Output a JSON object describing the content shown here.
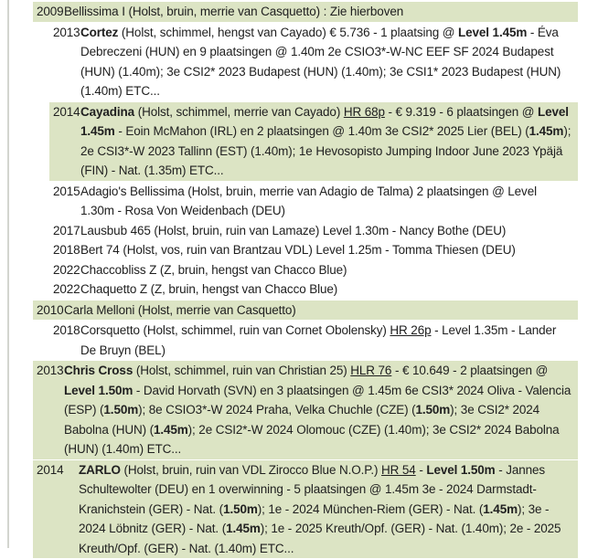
{
  "page": {
    "background_color": "#ffffff",
    "row_highlight_color": "#dce4c4",
    "left_border_color": "#d3d5cf",
    "text_color": "#202020"
  },
  "rows": [
    {
      "year": "2009",
      "level": 1,
      "green": true,
      "wide": false,
      "segments": [
        {
          "t": "Bellissima I (Holst, bruin, merrie van Casquetto) : Zie hierboven"
        }
      ]
    },
    {
      "year": "2013",
      "level": 2,
      "green": false,
      "wide": false,
      "segments": [
        {
          "t": "Cortez",
          "b": true
        },
        {
          "t": " (Holst, schimmel, hengst van Cayado) € 5.736 - 1 plaatsing @ "
        },
        {
          "t": "Level 1.45m",
          "b": true
        },
        {
          "t": " - Éva Debreczeni (HUN) en 9 plaatsingen @ 1.40m 2e CSIO3*-W-NC EEF SF 2024 Budapest (HUN) (1.40m); 3e CSI2* 2023 Budapest (HUN) (1.40m); 3e CSI1* 2023 Budapest (HUN) (1.40m) ETC..."
        }
      ]
    },
    {
      "year": "2014",
      "level": 2,
      "green": true,
      "wide": false,
      "segments": [
        {
          "t": "Cayadina",
          "b": true
        },
        {
          "t": " (Holst, schimmel, merrie van Cayado) "
        },
        {
          "t": "HR 68p",
          "u": true
        },
        {
          "t": " - € 9.319 - 6 plaatsingen @ "
        },
        {
          "t": "Level 1.45m",
          "b": true
        },
        {
          "t": " - Eoin McMahon (IRL) en 2 plaatsingen @ 1.40m 3e CSI2* 2025 Lier (BEL) ("
        },
        {
          "t": "1.45m",
          "b": true
        },
        {
          "t": "); 2e CSI3*-W 2023 Tallinn (EST) (1.40m); 1e Hevosopisto Jumping Indoor June 2023 Ypäjä (FIN) - Nat. (1.35m) ETC..."
        }
      ]
    },
    {
      "year": "2015",
      "level": 2,
      "green": false,
      "wide": false,
      "segments": [
        {
          "t": "Adagio's Bellissima (Holst, bruin, merrie van Adagio de Talma) 2 plaatsingen @ Level 1.30m - Rosa Von Weidenbach (DEU)"
        }
      ]
    },
    {
      "year": "2017",
      "level": 2,
      "green": false,
      "wide": false,
      "segments": [
        {
          "t": "Lausbub 465 (Holst, bruin, ruin van Lamaze) Level 1.30m - Nancy Bothe (DEU)"
        }
      ]
    },
    {
      "year": "2018",
      "level": 2,
      "green": false,
      "wide": false,
      "segments": [
        {
          "t": "Bert 74 (Holst, vos, ruin van Brantzau VDL) Level 1.25m - Tomma Thiesen (DEU)"
        }
      ]
    },
    {
      "year": "2022",
      "level": 2,
      "green": false,
      "wide": false,
      "segments": [
        {
          "t": "Chaccobliss Z (Z, bruin, hengst van Chacco Blue)"
        }
      ]
    },
    {
      "year": "2022",
      "level": 2,
      "green": false,
      "wide": false,
      "segments": [
        {
          "t": "Chaquetto Z (Z, bruin, hengst van Chacco Blue)"
        }
      ]
    },
    {
      "year": "2010",
      "level": 1,
      "green": true,
      "wide": false,
      "segments": [
        {
          "t": "Carla Melloni (Holst, merrie van Casquetto)"
        }
      ]
    },
    {
      "year": "2018",
      "level": 2,
      "green": false,
      "wide": false,
      "segments": [
        {
          "t": "Corsquetto (Holst, schimmel, ruin van Cornet Obolensky) "
        },
        {
          "t": "HR 26p",
          "u": true
        },
        {
          "t": " - Level 1.35m - Lander De Bruyn (BEL)"
        }
      ]
    },
    {
      "year": "2013",
      "level": 1,
      "green": true,
      "wide": false,
      "segments": [
        {
          "t": "Chris Cross",
          "b": true
        },
        {
          "t": " (Holst, schimmel, ruin van Christian 25) "
        },
        {
          "t": "HLR 76",
          "u": true
        },
        {
          "t": " - € 10.649 - 2 plaatsingen @ "
        },
        {
          "t": "Level 1.50m",
          "b": true
        },
        {
          "t": " - David Horvath (SVN) en 3 plaatsingen @ 1.45m 6e CSI3* 2024 Oliva - Valencia (ESP) ("
        },
        {
          "t": "1.50m",
          "b": true
        },
        {
          "t": "); 8e CSIO3*-W 2024 Praha, Velka Chuchle (CZE) ("
        },
        {
          "t": "1.50m",
          "b": true
        },
        {
          "t": "); 3e CSI2* 2024 Babolna (HUN) ("
        },
        {
          "t": "1.45m",
          "b": true
        },
        {
          "t": "); 2e CSI2*-W 2024 Olomouc (CZE) (1.40m); 3e CSI2* 2024 Babolna (HUN) (1.40m) ETC..."
        }
      ]
    },
    {
      "year": "2014",
      "level": 1,
      "green": true,
      "wide": true,
      "segments": [
        {
          "t": "ZARLO",
          "b": true
        },
        {
          "t": " (Holst, bruin, ruin van VDL Zirocco Blue N.O.P.) "
        },
        {
          "t": "HR 54",
          "u": true
        },
        {
          "t": " - "
        },
        {
          "t": "Level 1.50m",
          "b": true
        },
        {
          "t": " - Jannes Schultewolter (DEU) en 1 overwinning - 5 plaatsingen @ 1.45m 3e - 2024 Darmstadt-Kranichstein (GER) - Nat. ("
        },
        {
          "t": "1.50m",
          "b": true
        },
        {
          "t": "); 1e - 2024 München-Riem (GER) - Nat. ("
        },
        {
          "t": "1.45m",
          "b": true
        },
        {
          "t": "); 3e - 2024 Löbnitz (GER) - Nat. ("
        },
        {
          "t": "1.45m",
          "b": true
        },
        {
          "t": "); 1e - 2025 Kreuth/Opf. (GER) - Nat. (1.40m); 2e - 2025 Kreuth/Opf. (GER) - Nat. (1.40m) ETC..."
        }
      ]
    }
  ]
}
